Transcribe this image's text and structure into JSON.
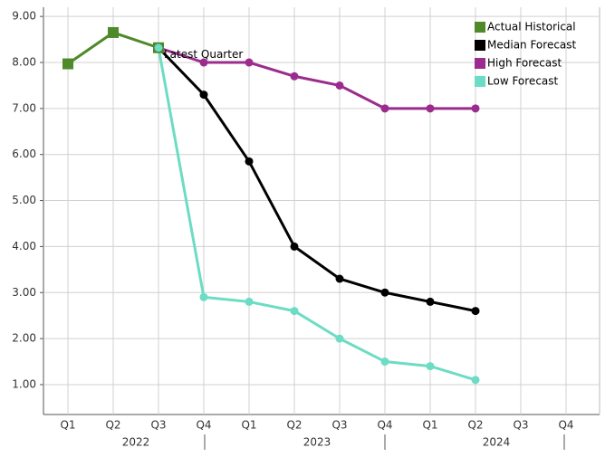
{
  "chart_data": {
    "type": "line",
    "categories": [
      "Q1",
      "Q2",
      "Q3",
      "Q4",
      "Q1",
      "Q2",
      "Q3",
      "Q4",
      "Q1",
      "Q2",
      "Q3",
      "Q4"
    ],
    "year_labels": [
      "2022",
      "2023",
      "2024"
    ],
    "annotation": "Latest Quarter",
    "series": [
      {
        "name": "Actual Historical",
        "color": "#4e8a2a",
        "marker": "square",
        "values": [
          7.97,
          8.65,
          8.32,
          null,
          null,
          null,
          null,
          null,
          null,
          null,
          null,
          null
        ]
      },
      {
        "name": "Median Forecast",
        "color": "#000000",
        "marker": "circle",
        "values": [
          null,
          null,
          8.32,
          7.3,
          5.85,
          4.0,
          3.3,
          3.0,
          2.8,
          2.6,
          null,
          null
        ]
      },
      {
        "name": "High Forecast",
        "color": "#9b2c8e",
        "marker": "circle",
        "values": [
          null,
          null,
          8.32,
          8.0,
          8.0,
          7.7,
          7.5,
          7.0,
          7.0,
          7.0,
          null,
          null
        ]
      },
      {
        "name": "Low Forecast",
        "color": "#6ddcc4",
        "marker": "circle",
        "values": [
          null,
          null,
          8.32,
          2.9,
          2.8,
          2.6,
          2.0,
          1.5,
          1.4,
          1.1,
          null,
          null
        ]
      }
    ],
    "ylim": [
      0.35,
      9.2
    ],
    "yticks": [
      {
        "value": 1,
        "label": "1.00"
      },
      {
        "value": 2,
        "label": "2.00"
      },
      {
        "value": 3,
        "label": "3.00"
      },
      {
        "value": 4,
        "label": "4.00"
      },
      {
        "value": 5,
        "label": "5.00"
      },
      {
        "value": 6,
        "label": "6.00"
      },
      {
        "value": 7,
        "label": "7.00"
      },
      {
        "value": 8,
        "label": "8.00"
      },
      {
        "value": 9,
        "label": "9.00"
      }
    ],
    "grid": true,
    "legend": "top-right"
  }
}
